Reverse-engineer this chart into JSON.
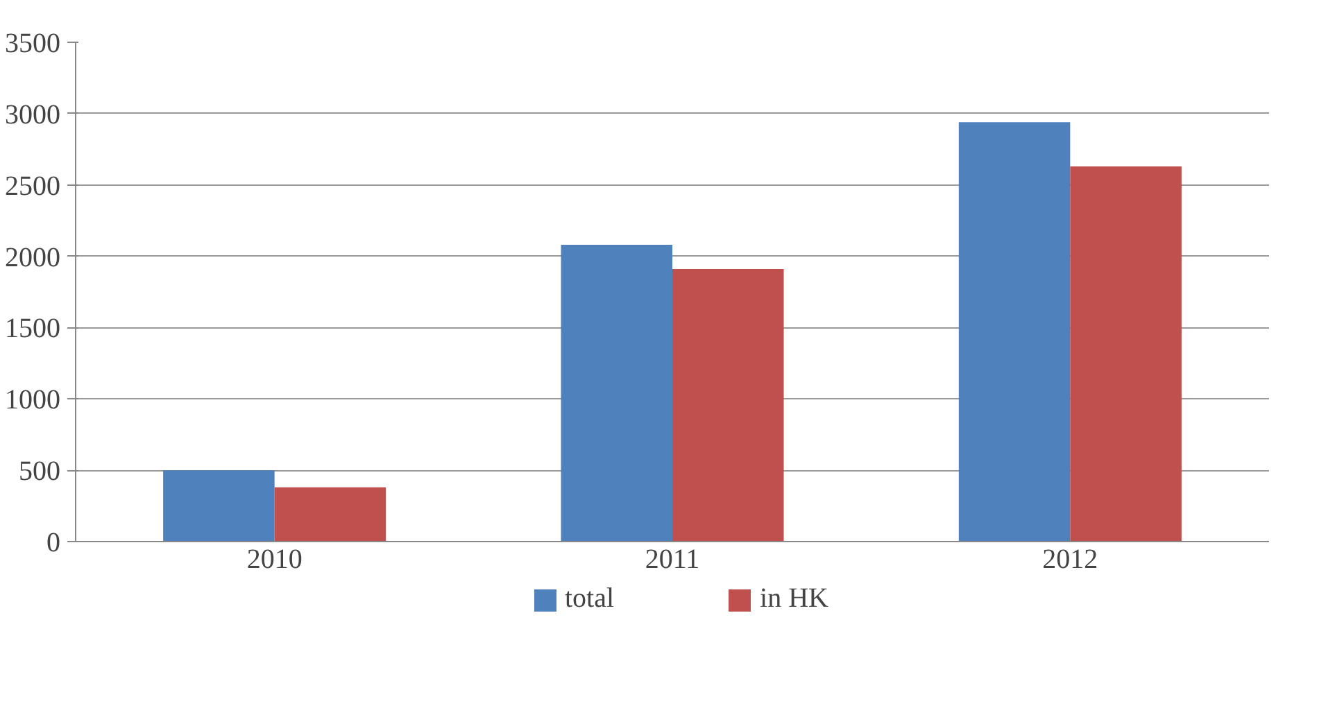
{
  "chart_data": {
    "type": "bar",
    "categories": [
      "2010",
      "2011",
      "2012"
    ],
    "series": [
      {
        "name": "total",
        "color": "#4f81bd",
        "values": [
          500,
          2080,
          2940
        ]
      },
      {
        "name": "in HK",
        "color": "#c0504d",
        "values": [
          380,
          1910,
          2630
        ]
      }
    ],
    "ylim": [
      0,
      3500
    ],
    "yticks": [
      0,
      500,
      1000,
      1500,
      2000,
      2500,
      3000,
      3500
    ],
    "grid": "y",
    "legend": "bottom"
  }
}
